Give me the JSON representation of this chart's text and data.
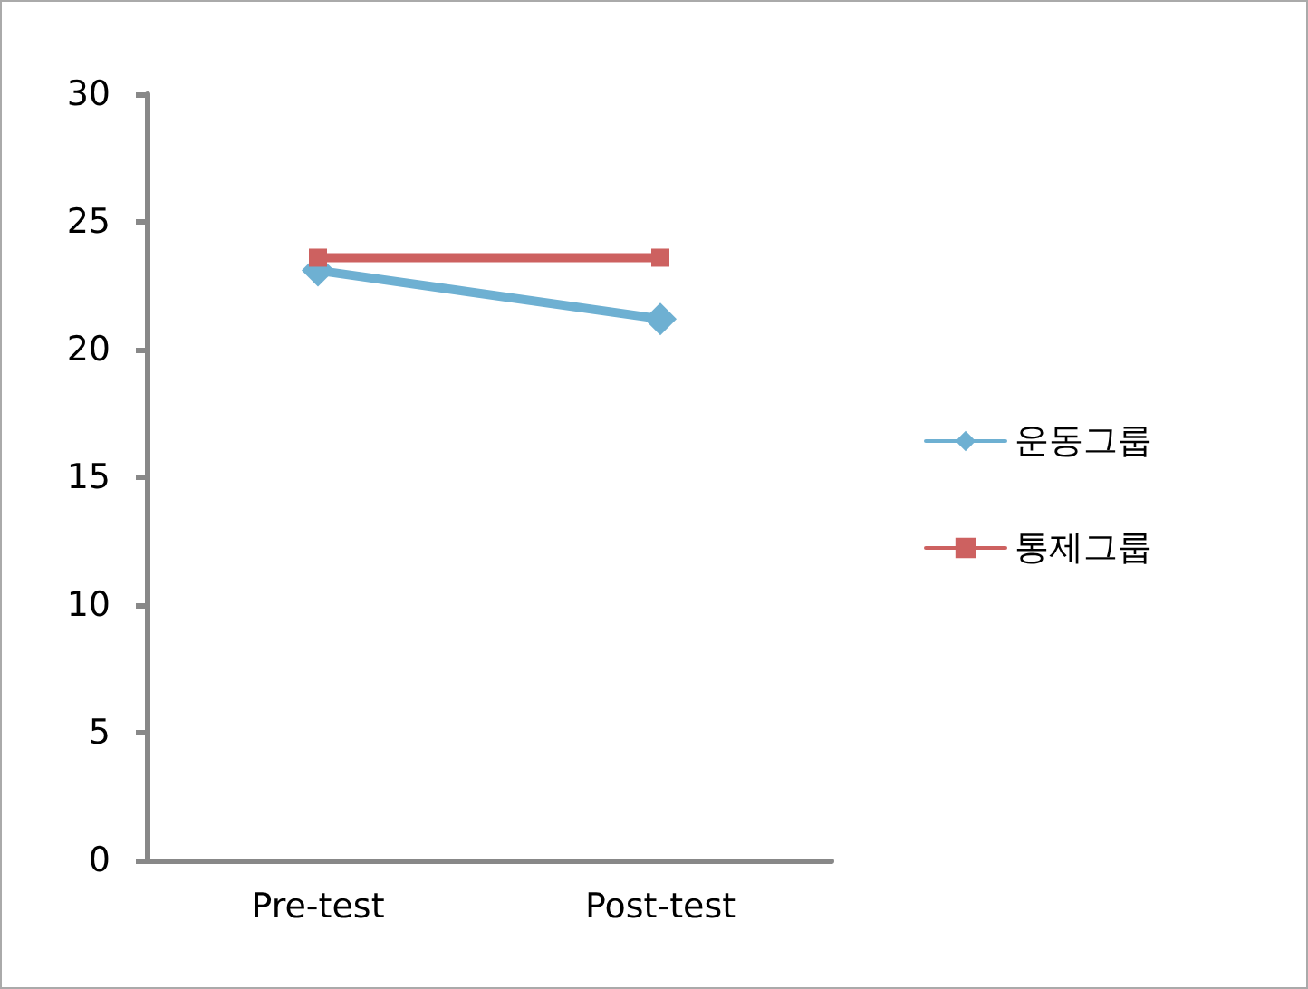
{
  "chart_data": {
    "type": "line",
    "categories": [
      "Pre-test",
      "Post-test"
    ],
    "series": [
      {
        "name": "운동그룹",
        "color": "#6eb0d2",
        "values": [
          23.1,
          21.2
        ],
        "marker": "diamond"
      },
      {
        "name": "통제그룹",
        "color": "#cd6160",
        "values": [
          23.6,
          23.6
        ],
        "marker": "square"
      }
    ],
    "ylim": [
      0,
      30
    ],
    "yticks": [
      0,
      5,
      10,
      15,
      20,
      25,
      30
    ],
    "grid": false,
    "legend": "right"
  }
}
